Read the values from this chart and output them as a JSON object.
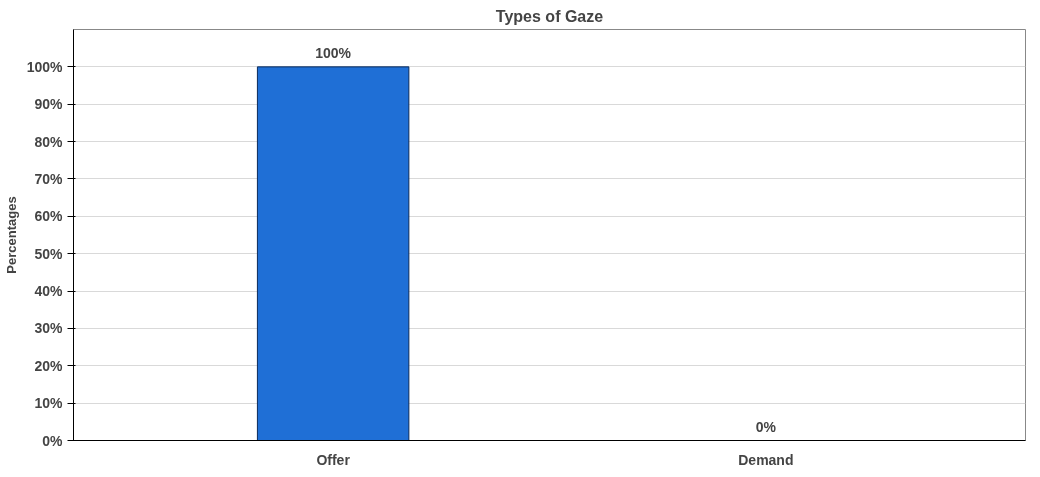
{
  "chart_data": {
    "type": "bar",
    "title": "Types of Gaze",
    "ylabel": "Percentages",
    "categories": [
      "Offer",
      "Demand"
    ],
    "values": [
      100,
      0
    ],
    "colors": [
      "#1f6fd6",
      "#0a2a5a"
    ],
    "value_labels": [
      "100%",
      "0%"
    ],
    "ylim": [
      0,
      110
    ],
    "yticks": [
      {
        "value": 0,
        "label": "0%"
      },
      {
        "value": 10,
        "label": "10%"
      },
      {
        "value": 20,
        "label": "20%"
      },
      {
        "value": 30,
        "label": "30%"
      },
      {
        "value": 40,
        "label": "40%"
      },
      {
        "value": 50,
        "label": "50%"
      },
      {
        "value": 60,
        "label": "60%"
      },
      {
        "value": 70,
        "label": "70%"
      },
      {
        "value": 80,
        "label": "80%"
      },
      {
        "value": 90,
        "label": "90%"
      },
      {
        "value": 100,
        "label": "100%"
      }
    ],
    "grid": "y"
  }
}
